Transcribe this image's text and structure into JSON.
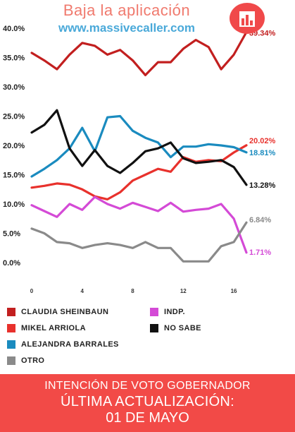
{
  "promo": {
    "line1": "Baja la aplicación",
    "line2": "www.massivecaller.com"
  },
  "chart_data": {
    "type": "line",
    "x": [
      0,
      1,
      2,
      3,
      4,
      5,
      6,
      7,
      8,
      9,
      10,
      11,
      12,
      13,
      14,
      15,
      16,
      17
    ],
    "x_ticks": [
      "0",
      "4",
      "8",
      "12",
      "16"
    ],
    "y_ticks": [
      "0.0%",
      "5.0%",
      "10.0%",
      "15.0%",
      "20.0%",
      "25.0%",
      "30.0%",
      "35.0%",
      "40.0%"
    ],
    "ylim": [
      0,
      40
    ],
    "series": [
      {
        "name": "CLAUDIA SHEINBAUN",
        "color": "#c21f1f",
        "values": [
          35.8,
          34.5,
          33.0,
          35.5,
          37.5,
          37.0,
          35.5,
          36.3,
          34.5,
          32.0,
          34.2,
          34.2,
          36.5,
          38.0,
          36.8,
          33.0,
          35.5,
          39.34
        ],
        "end_label": "39.34%"
      },
      {
        "name": "MIKEL ARRIOLA",
        "color": "#e8312c",
        "values": [
          12.8,
          13.1,
          13.5,
          13.3,
          12.5,
          11.3,
          10.8,
          12.0,
          14.0,
          15.0,
          16.0,
          15.5,
          18.0,
          17.2,
          17.5,
          17.3,
          18.8,
          20.02
        ],
        "end_label": "20.02%"
      },
      {
        "name": "ALEJANDRA BARRALES",
        "color": "#1a8bbf",
        "values": [
          14.7,
          16.0,
          17.5,
          19.5,
          23.0,
          19.0,
          24.8,
          25.0,
          22.5,
          21.3,
          20.5,
          18.0,
          19.8,
          19.8,
          20.2,
          20.0,
          19.7,
          18.81
        ],
        "end_label": "18.81%"
      },
      {
        "name": "INDP.",
        "color": "#d44ad6",
        "values": [
          9.8,
          8.8,
          7.8,
          10.0,
          9.0,
          11.2,
          10.0,
          9.2,
          10.2,
          9.5,
          8.8,
          10.2,
          8.7,
          9.0,
          9.2,
          10.0,
          7.5,
          1.71
        ],
        "end_label": "1.71%"
      },
      {
        "name": "NO SABE",
        "color": "#111111",
        "values": [
          22.2,
          23.5,
          26.0,
          19.5,
          16.5,
          19.2,
          16.5,
          15.3,
          17.0,
          19.0,
          19.5,
          20.5,
          17.8,
          17.0,
          17.2,
          17.5,
          16.3,
          13.28
        ],
        "end_label": "13.28%"
      },
      {
        "name": "OTRO",
        "color": "#8a8a8a",
        "values": [
          5.8,
          5.0,
          3.5,
          3.3,
          2.5,
          3.0,
          3.3,
          3.0,
          2.5,
          3.5,
          2.5,
          2.5,
          0.2,
          0.2,
          0.2,
          2.8,
          3.5,
          6.84
        ],
        "end_label": "6.84%"
      }
    ]
  },
  "legend": [
    {
      "label": "CLAUDIA SHEINBAUN",
      "color": "#c21f1f"
    },
    {
      "label": "INDP.",
      "color": "#d44ad6"
    },
    {
      "label": "MIKEL ARRIOLA",
      "color": "#e8312c"
    },
    {
      "label": "NO SABE",
      "color": "#111111"
    },
    {
      "label": "ALEJANDRA BARRALES",
      "color": "#1a8bbf"
    },
    {
      "label": "OTRO",
      "color": "#8a8a8a"
    }
  ],
  "footer": {
    "line1": "INTENCIÓN DE VOTO GOBERNADOR",
    "line2": "ÚLTIMA ACTUALIZACIÓN:",
    "line3": "01 DE MAYO"
  }
}
